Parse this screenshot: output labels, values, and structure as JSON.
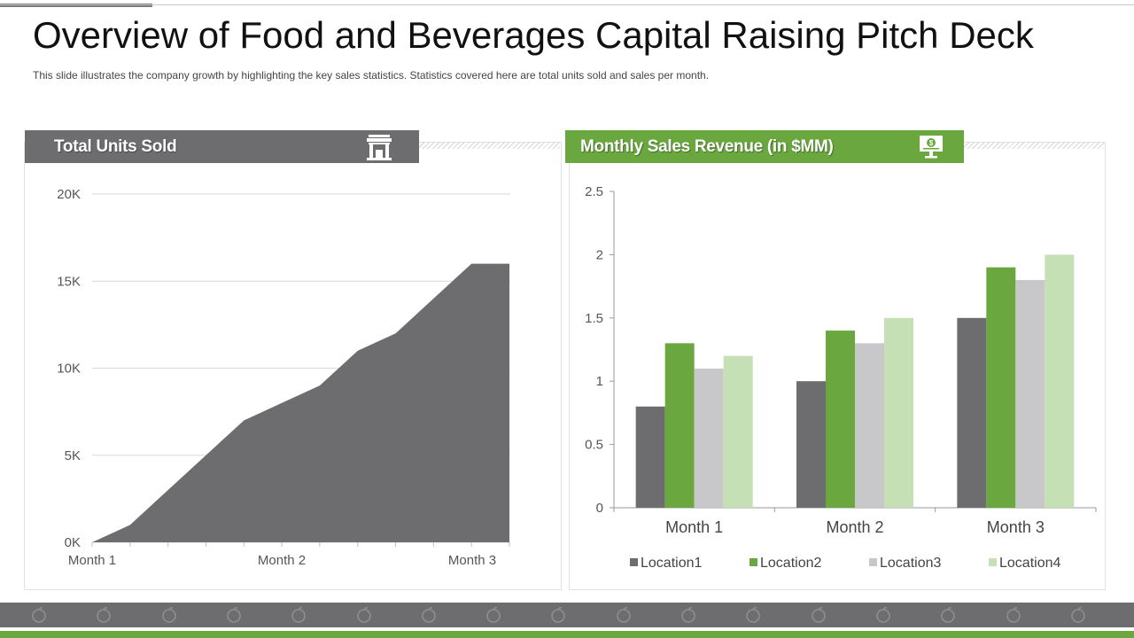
{
  "title": "Overview of Food and Beverages Capital Raising Pitch Deck",
  "subtitle": "This slide illustrates the company growth  by highlighting the key sales statistics. Statistics covered here are total units sold and sales per month.",
  "left_panel": {
    "title": "Total Units Sold",
    "icon": "bank-icon"
  },
  "right_panel": {
    "title": "Monthly Sales Revenue (in $MM)",
    "icon": "monitor-dollar-icon"
  },
  "colors": {
    "grey": "#6d6d70",
    "green": "#6aa73f",
    "light_grey": "#c8c8ca",
    "light_green": "#c5e0b4"
  },
  "footer_icons": [
    "food-icon",
    "fruit-icon",
    "leaf-icon",
    "orange-icon",
    "bamboo-icon",
    "mushroom-icon",
    "plant-icon",
    "lemon-icon",
    "jar-icon",
    "strawberry-icon",
    "apple-icon",
    "strawberry-icon",
    "lemon-icon",
    "strawberry-icon",
    "acorn-icon",
    "strawberry-icon",
    "apple-icon"
  ],
  "chart_data": [
    {
      "type": "area",
      "x_ticks": [
        "Month 1",
        "Month 2",
        "Month 3"
      ],
      "x": [
        0,
        1,
        2,
        3,
        4,
        5,
        6,
        7,
        8,
        9,
        10,
        11
      ],
      "values": [
        0,
        1000,
        3000,
        5000,
        7000,
        8000,
        9000,
        11000,
        12000,
        14000,
        16000,
        16000
      ],
      "y_ticks": [
        "0K",
        "5K",
        "10K",
        "15K",
        "20K"
      ],
      "ylim": [
        0,
        20000
      ],
      "grid": true
    },
    {
      "type": "bar",
      "categories": [
        "Month 1",
        "Month 2",
        "Month 3"
      ],
      "series": [
        {
          "name": "Location1",
          "values": [
            0.8,
            1.0,
            1.5
          ]
        },
        {
          "name": "Location2",
          "values": [
            1.3,
            1.4,
            1.9
          ]
        },
        {
          "name": "Location3",
          "values": [
            1.1,
            1.3,
            1.8
          ]
        },
        {
          "name": "Location4",
          "values": [
            1.2,
            1.5,
            2.0
          ]
        }
      ],
      "y_ticks": [
        "0",
        "0.5",
        "1",
        "1.5",
        "2",
        "2.5"
      ],
      "ylim": [
        0,
        2.5
      ],
      "grid": false,
      "legend": "bottom"
    }
  ]
}
